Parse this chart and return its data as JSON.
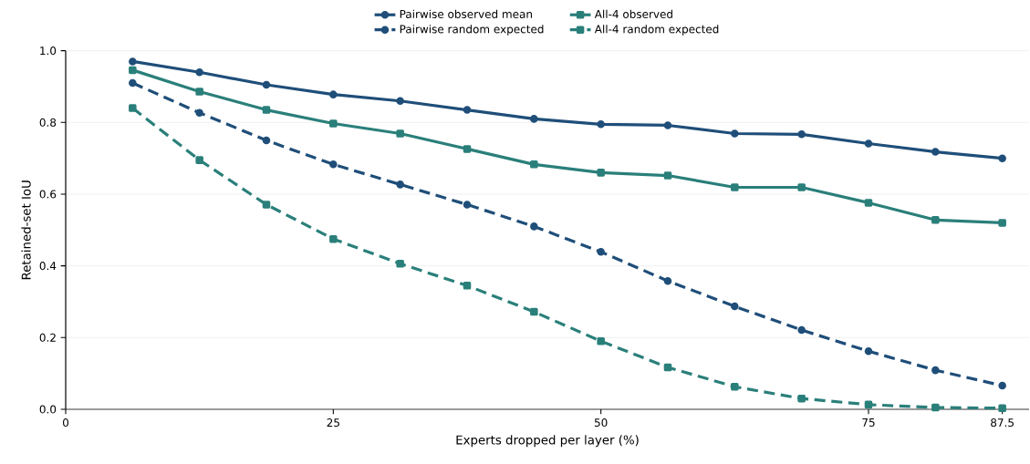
{
  "chart_data": {
    "type": "line",
    "xlabel": "Experts dropped per layer (%)",
    "ylabel": "Retained-set IoU",
    "x": [
      6.25,
      12.5,
      18.75,
      25,
      31.25,
      37.5,
      43.75,
      50,
      56.25,
      62.5,
      68.75,
      75,
      81.25,
      87.5
    ],
    "series": [
      {
        "name": "Pairwise observed mean",
        "color": "#1f4e79",
        "line_style": "solid",
        "marker": "circle",
        "values": [
          0.97,
          0.94,
          0.905,
          0.878,
          0.86,
          0.835,
          0.81,
          0.795,
          0.792,
          0.769,
          0.767,
          0.741,
          0.718,
          0.7
        ]
      },
      {
        "name": "Pairwise random expected",
        "color": "#1f4e79",
        "line_style": "dashed",
        "marker": "circle",
        "values": [
          0.91,
          0.827,
          0.75,
          0.683,
          0.627,
          0.571,
          0.51,
          0.439,
          0.358,
          0.287,
          0.221,
          0.162,
          0.109,
          0.066
        ]
      },
      {
        "name": "All-4 observed",
        "color": "#2a7f7a",
        "line_style": "solid",
        "marker": "square",
        "values": [
          0.946,
          0.886,
          0.835,
          0.797,
          0.769,
          0.726,
          0.683,
          0.66,
          0.652,
          0.619,
          0.619,
          0.576,
          0.528,
          0.52
        ]
      },
      {
        "name": "All-4 random expected",
        "color": "#2a7f7a",
        "line_style": "dashed",
        "marker": "square",
        "values": [
          0.84,
          0.695,
          0.571,
          0.475,
          0.406,
          0.345,
          0.272,
          0.19,
          0.117,
          0.063,
          0.03,
          0.013,
          0.005,
          0.003
        ]
      }
    ],
    "xlim": [
      0,
      90
    ],
    "ylim": [
      0,
      1.0
    ],
    "xticks": [
      0,
      25,
      50,
      75,
      87.5
    ],
    "yticks": [
      {
        "value": 0,
        "label": "0.0"
      },
      {
        "value": 0.2,
        "label": "0.2"
      },
      {
        "value": 0.4,
        "label": "0.4"
      },
      {
        "value": 0.6,
        "label": "0.6"
      },
      {
        "value": 0.8,
        "label": "0.8"
      },
      {
        "value": 1.0,
        "label": "1.0"
      }
    ],
    "grid": "y",
    "legend": "top"
  }
}
